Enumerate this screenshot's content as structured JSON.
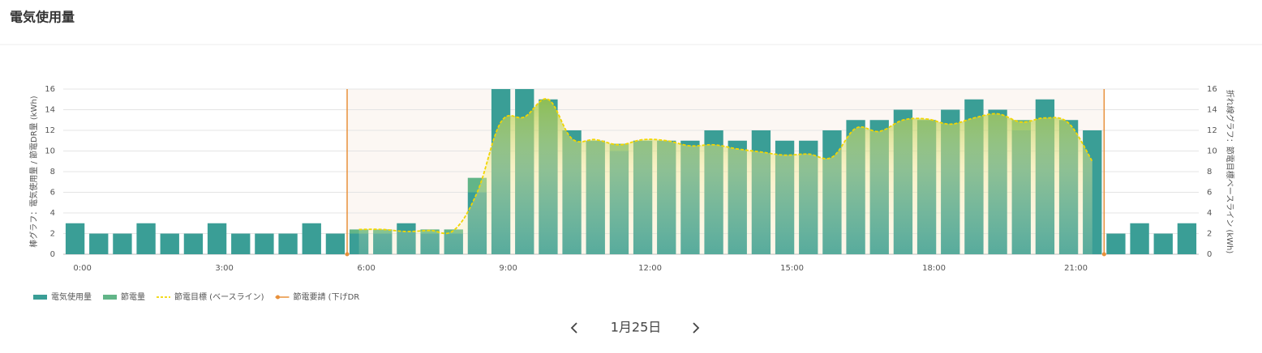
{
  "chart_data": {
    "type": "bar",
    "title": "電気使用量",
    "categories": [
      "0:00",
      null,
      null,
      null,
      null,
      null,
      "3:00",
      null,
      null,
      null,
      null,
      null,
      "6:00",
      null,
      null,
      null,
      null,
      null,
      "9:00",
      null,
      null,
      null,
      null,
      null,
      "12:00",
      null,
      null,
      null,
      null,
      null,
      "15:00",
      null,
      null,
      null,
      null,
      null,
      "18:00",
      null,
      null,
      null,
      null,
      null,
      "21:00",
      null,
      null,
      null,
      null,
      null
    ],
    "y_label": "棒グラフ：電気使用量 / 節電DR量 (kWh)",
    "y2_label": "折れ線グラフ：節電目標ベースライン (kWh)",
    "ylim": [
      0,
      16
    ],
    "yticks": [
      0,
      2,
      4,
      6,
      8,
      10,
      12,
      14,
      16
    ],
    "y2lim": [
      0,
      16
    ],
    "y2ticks": [
      0,
      2,
      4,
      6,
      8,
      10,
      12,
      14,
      16
    ],
    "grid": true,
    "series": [
      {
        "name": "電気使用量",
        "type": "bar",
        "color": "#3a9e96",
        "values": [
          3,
          2,
          2,
          3,
          2,
          2,
          3,
          2,
          2,
          2,
          3,
          2,
          2,
          2,
          3,
          2,
          2,
          6,
          16,
          16,
          15,
          12,
          11,
          10,
          11,
          11,
          11,
          12,
          11,
          12,
          11,
          11,
          12,
          13,
          13,
          14,
          13,
          14,
          15,
          14,
          12,
          15,
          13,
          12,
          2,
          3,
          2,
          3
        ]
      },
      {
        "name": "節電量",
        "type": "bar",
        "color": "#62b588",
        "values": [
          0,
          0,
          0,
          0,
          0,
          0,
          0,
          0,
          0,
          0,
          0,
          0,
          0.4,
          0.4,
          0,
          0.4,
          0.4,
          1.4,
          0,
          0,
          0,
          0,
          0,
          0.7,
          0,
          0,
          0,
          0,
          0,
          0,
          0,
          0,
          0,
          0,
          0,
          0,
          0,
          0,
          0,
          0,
          1,
          0,
          0,
          0,
          0,
          0,
          0,
          0
        ]
      },
      {
        "name": "節電目標 (ベースライン)",
        "type": "line",
        "axis": "y2",
        "color": "#f2d600",
        "values": [
          null,
          null,
          null,
          null,
          null,
          null,
          null,
          null,
          null,
          null,
          null,
          null,
          2.4,
          2.4,
          2.2,
          2.3,
          2.3,
          6,
          12.8,
          13.3,
          15,
          11.2,
          11.1,
          10.6,
          11.1,
          11,
          10.5,
          10.6,
          10.2,
          9.9,
          9.6,
          9.7,
          9.4,
          12.2,
          11.9,
          13,
          13.1,
          12.6,
          13.2,
          13.6,
          12.8,
          13.2,
          12.7,
          9,
          null,
          null,
          null,
          null
        ]
      },
      {
        "name": "節電要請 (下げDR",
        "type": "span",
        "color": "#e8903a",
        "x": [
          6,
          22
        ]
      }
    ]
  },
  "navigation": {
    "date": "1月25日"
  }
}
